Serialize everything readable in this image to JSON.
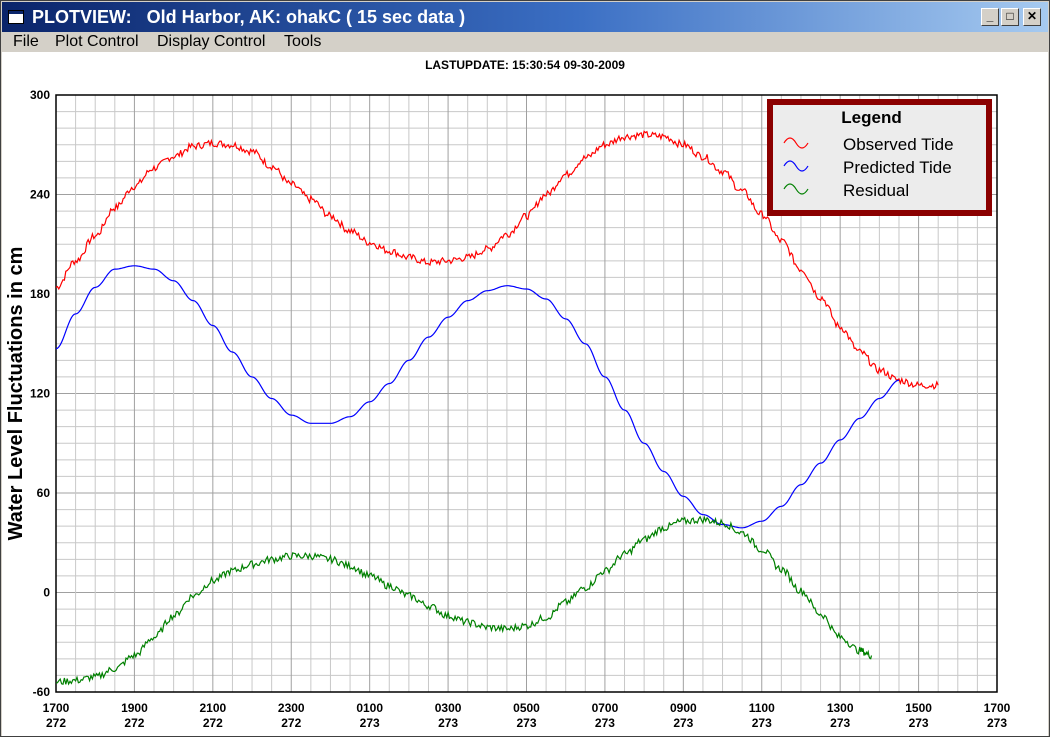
{
  "window": {
    "title": "PLOTVIEW:   Old Harbor, AK: ohakC ( 15 sec data )",
    "controls": {
      "minimize": "_",
      "maximize": "□",
      "close": "✕"
    },
    "icon": "app-window-icon"
  },
  "menu": [
    "File",
    "Plot Control",
    "Display Control",
    "Tools"
  ],
  "lastupdate": "LASTUPDATE: 15:30:54  09-30-2009",
  "chart_data": {
    "type": "line",
    "title": "LASTUPDATE: 15:30:54  09-30-2009",
    "ylabel": "Water Level Fluctuations in cm",
    "xlabel": "",
    "ylim": [
      -60,
      300
    ],
    "xlim": [
      0,
      24
    ],
    "grid": true,
    "legend_placement": "top-right",
    "legend_title": "Legend",
    "yticks": [
      "300",
      "240",
      "180",
      "120",
      "60",
      "0",
      "-60"
    ],
    "xticks": [
      {
        "x": 0,
        "time": "1700",
        "day": "272"
      },
      {
        "x": 2,
        "time": "1900",
        "day": "272"
      },
      {
        "x": 4,
        "time": "2100",
        "day": "272"
      },
      {
        "x": 6,
        "time": "2300",
        "day": "272"
      },
      {
        "x": 8,
        "time": "0100",
        "day": "273"
      },
      {
        "x": 10,
        "time": "0300",
        "day": "273"
      },
      {
        "x": 12,
        "time": "0500",
        "day": "273"
      },
      {
        "x": 14,
        "time": "0700",
        "day": "273"
      },
      {
        "x": 16,
        "time": "0900",
        "day": "273"
      },
      {
        "x": 18,
        "time": "1100",
        "day": "273"
      },
      {
        "x": 20,
        "time": "1300",
        "day": "273"
      },
      {
        "x": 22,
        "time": "1500",
        "day": "273"
      },
      {
        "x": 24,
        "time": "1700",
        "day": "273"
      }
    ],
    "series": [
      {
        "name": "Observed Tide",
        "color": "#ff0000",
        "points": [
          [
            0,
            184
          ],
          [
            0.5,
            200
          ],
          [
            1,
            215
          ],
          [
            1.5,
            232
          ],
          [
            2,
            245
          ],
          [
            2.5,
            256
          ],
          [
            3,
            263
          ],
          [
            3.5,
            269
          ],
          [
            4,
            271
          ],
          [
            4.5,
            270
          ],
          [
            5,
            266
          ],
          [
            5.5,
            257
          ],
          [
            6,
            246
          ],
          [
            6.5,
            237
          ],
          [
            7,
            227
          ],
          [
            7.5,
            218
          ],
          [
            8,
            211
          ],
          [
            8.5,
            206
          ],
          [
            9,
            202
          ],
          [
            9.5,
            199
          ],
          [
            10,
            200
          ],
          [
            10.5,
            202
          ],
          [
            11,
            207
          ],
          [
            11.5,
            216
          ],
          [
            12,
            227
          ],
          [
            12.5,
            240
          ],
          [
            13,
            252
          ],
          [
            13.5,
            262
          ],
          [
            14,
            270
          ],
          [
            14.5,
            275
          ],
          [
            15,
            276
          ],
          [
            15.5,
            275
          ],
          [
            16,
            270
          ],
          [
            16.5,
            263
          ],
          [
            17,
            254
          ],
          [
            17.5,
            242
          ],
          [
            18,
            228
          ],
          [
            18.5,
            212
          ],
          [
            19,
            195
          ],
          [
            19.5,
            178
          ],
          [
            20,
            160
          ],
          [
            20.5,
            145
          ],
          [
            21,
            134
          ],
          [
            21.5,
            128
          ],
          [
            22,
            125
          ],
          [
            22.5,
            125
          ]
        ]
      },
      {
        "name": "Predicted Tide",
        "color": "#0000ff",
        "points": [
          [
            0,
            147
          ],
          [
            0.5,
            168
          ],
          [
            1,
            184
          ],
          [
            1.5,
            195
          ],
          [
            2,
            197
          ],
          [
            2.5,
            195
          ],
          [
            3,
            188
          ],
          [
            3.5,
            176
          ],
          [
            4,
            161
          ],
          [
            4.5,
            145
          ],
          [
            5,
            130
          ],
          [
            5.5,
            117
          ],
          [
            6,
            107
          ],
          [
            6.5,
            102
          ],
          [
            7,
            102
          ],
          [
            7.5,
            106
          ],
          [
            8,
            115
          ],
          [
            8.5,
            126
          ],
          [
            9,
            140
          ],
          [
            9.5,
            154
          ],
          [
            10,
            166
          ],
          [
            10.5,
            176
          ],
          [
            11,
            182
          ],
          [
            11.5,
            185
          ],
          [
            12,
            183
          ],
          [
            12.5,
            177
          ],
          [
            13,
            165
          ],
          [
            13.5,
            150
          ],
          [
            14,
            130
          ],
          [
            14.5,
            110
          ],
          [
            15,
            90
          ],
          [
            15.5,
            73
          ],
          [
            16,
            58
          ],
          [
            16.5,
            47
          ],
          [
            17,
            41
          ],
          [
            17.5,
            39
          ],
          [
            18,
            43
          ],
          [
            18.5,
            52
          ],
          [
            19,
            65
          ],
          [
            19.5,
            78
          ],
          [
            20,
            92
          ],
          [
            20.5,
            105
          ],
          [
            21,
            117
          ],
          [
            21.5,
            128
          ]
        ]
      },
      {
        "name": "Residual",
        "color": "#008000",
        "points": [
          [
            0,
            -54
          ],
          [
            0.5,
            -53
          ],
          [
            1,
            -51
          ],
          [
            1.5,
            -46
          ],
          [
            2,
            -38
          ],
          [
            2.5,
            -27
          ],
          [
            3,
            -14
          ],
          [
            3.5,
            -2
          ],
          [
            4,
            7
          ],
          [
            4.5,
            13
          ],
          [
            5,
            17
          ],
          [
            5.5,
            20
          ],
          [
            6,
            22
          ],
          [
            6.5,
            22
          ],
          [
            7,
            20
          ],
          [
            7.5,
            16
          ],
          [
            8,
            10
          ],
          [
            8.5,
            4
          ],
          [
            9,
            -2
          ],
          [
            9.5,
            -8
          ],
          [
            10,
            -14
          ],
          [
            10.5,
            -18
          ],
          [
            11,
            -21
          ],
          [
            11.5,
            -22
          ],
          [
            12,
            -20
          ],
          [
            12.5,
            -15
          ],
          [
            13,
            -6
          ],
          [
            13.5,
            3
          ],
          [
            14,
            13
          ],
          [
            14.5,
            23
          ],
          [
            15,
            32
          ],
          [
            15.5,
            39
          ],
          [
            16,
            43
          ],
          [
            16.5,
            44
          ],
          [
            17,
            42
          ],
          [
            17.5,
            36
          ],
          [
            18,
            26
          ],
          [
            18.5,
            14
          ],
          [
            19,
            1
          ],
          [
            19.5,
            -13
          ],
          [
            20,
            -27
          ],
          [
            20.5,
            -35
          ],
          [
            20.8,
            -38
          ]
        ]
      }
    ]
  }
}
